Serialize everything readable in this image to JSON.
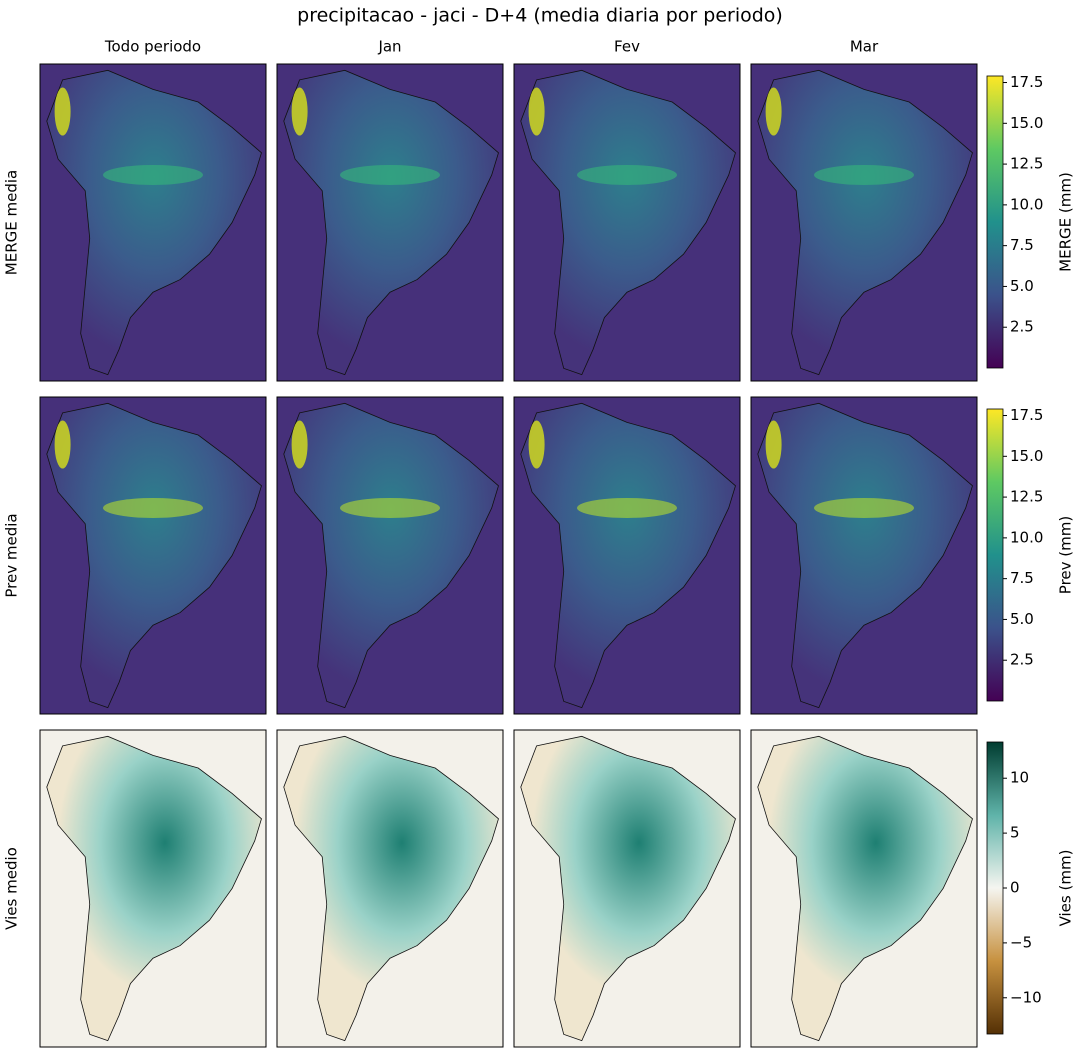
{
  "title": "precipitacao - jaci - D+4 (media diaria por periodo)",
  "columns": [
    "Todo periodo",
    "Jan",
    "Fev",
    "Mar"
  ],
  "rows": [
    {
      "label": "MERGE media",
      "colorbar": {
        "label": "MERGE (mm)",
        "colormap": "viridis",
        "lim": [
          0,
          17.9
        ],
        "ticks": [
          2.5,
          {
            "value": 5,
            "label": "5.0"
          },
          7.5,
          {
            "value": 10,
            "label": "10.0"
          },
          12.5,
          {
            "value": 15,
            "label": "15.0"
          },
          17.5
        ]
      }
    },
    {
      "label": "Prev media",
      "colorbar": {
        "label": "Prev (mm)",
        "colormap": "viridis",
        "lim": [
          0,
          17.9
        ],
        "ticks": [
          2.5,
          {
            "value": 5,
            "label": "5.0"
          },
          7.5,
          {
            "value": 10,
            "label": "10.0"
          },
          12.5,
          {
            "value": 15,
            "label": "15.0"
          },
          17.5
        ]
      }
    },
    {
      "label": "Vies medio",
      "colorbar": {
        "label": "Vies (mm)",
        "colormap": "BrBG",
        "lim": [
          -13.3,
          13.3
        ],
        "ticks": [
          {
            "value": -10,
            "label": "−10"
          },
          {
            "value": -5,
            "label": "−5"
          },
          0,
          5,
          10
        ]
      }
    }
  ]
}
